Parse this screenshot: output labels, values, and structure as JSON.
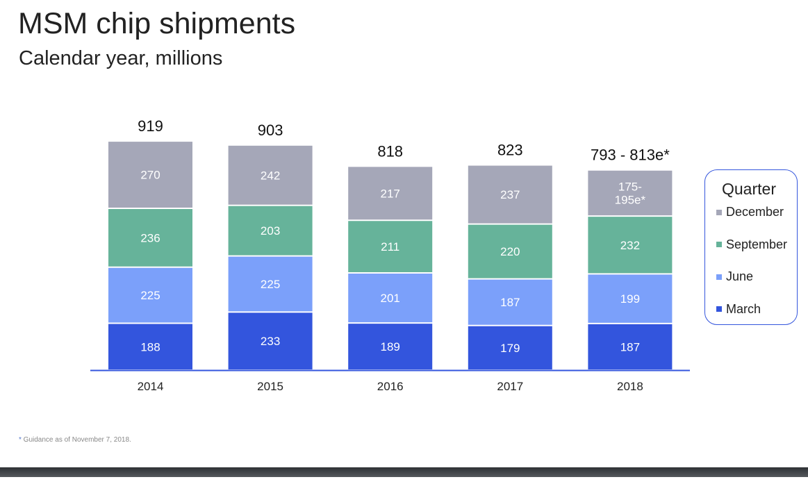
{
  "title": "MSM chip shipments",
  "subtitle": "Calendar year, millions",
  "footnote": {
    "marker": "*",
    "text": " Guidance as of November 7, 2018."
  },
  "chart_data": {
    "type": "bar",
    "stacked": true,
    "title": "MSM chip shipments",
    "subtitle": "Calendar year, millions",
    "categories": [
      "2014",
      "2015",
      "2016",
      "2017",
      "2018"
    ],
    "totals": [
      "919",
      "903",
      "818",
      "823",
      "793 - 813e*"
    ],
    "series": [
      {
        "name": "March",
        "color": "#3355dd",
        "values": [
          188,
          233,
          189,
          179,
          187
        ],
        "labels": [
          "188",
          "233",
          "189",
          "179",
          "187"
        ]
      },
      {
        "name": "June",
        "color": "#7ba0fa",
        "values": [
          225,
          225,
          201,
          187,
          199
        ],
        "labels": [
          "225",
          "225",
          "201",
          "187",
          "199"
        ]
      },
      {
        "name": "September",
        "color": "#66b39a",
        "values": [
          236,
          203,
          211,
          220,
          232
        ],
        "labels": [
          "236",
          "203",
          "211",
          "220",
          "232"
        ]
      },
      {
        "name": "December",
        "color": "#a5a7b8",
        "values": [
          270,
          242,
          217,
          237,
          185
        ],
        "labels": [
          "270",
          "242",
          "217",
          "237",
          "175-\n195e*"
        ]
      }
    ],
    "legend": {
      "title": "Quarter",
      "placement": "right",
      "order": [
        "December",
        "September",
        "June",
        "March"
      ]
    },
    "axis_color": "#3355dd",
    "grid": false
  }
}
